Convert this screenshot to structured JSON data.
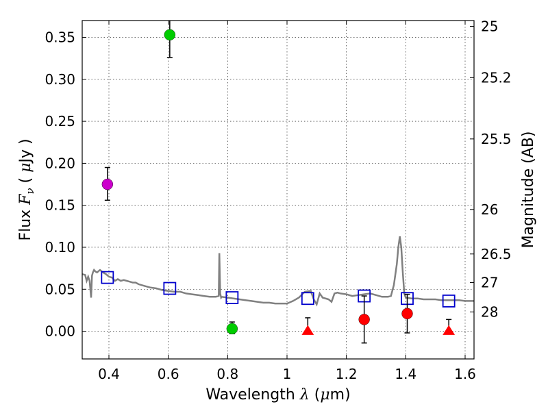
{
  "chart_data": {
    "type": "scatter",
    "xlabel": {
      "prefix": "Wavelength  ",
      "symbol": "λ",
      "unit_open": " (",
      "unit_mu": "μ",
      "unit_rest": "m)"
    },
    "ylabel": {
      "prefix": "Flux  ",
      "symbol": "F",
      "subscript": "ν",
      "unit_open": "  ( ",
      "unit_mu": "μ",
      "unit_rest": "Jy )"
    },
    "y2label": "Magnitude (AB)",
    "xlim": [
      0.31,
      1.63
    ],
    "ylim": [
      -0.033,
      0.37
    ],
    "grid": true,
    "xticks": [
      {
        "value": 0.4,
        "label": "0.4"
      },
      {
        "value": 0.6,
        "label": "0.6"
      },
      {
        "value": 0.8,
        "label": "0.8"
      },
      {
        "value": 1.0,
        "label": "1"
      },
      {
        "value": 1.2,
        "label": "1.2"
      },
      {
        "value": 1.4,
        "label": "1.4"
      },
      {
        "value": 1.6,
        "label": "1.6"
      }
    ],
    "yticks": [
      {
        "value": 0.0,
        "label": "0.00"
      },
      {
        "value": 0.05,
        "label": "0.05"
      },
      {
        "value": 0.1,
        "label": "0.10"
      },
      {
        "value": 0.15,
        "label": "0.15"
      },
      {
        "value": 0.2,
        "label": "0.20"
      },
      {
        "value": 0.25,
        "label": "0.25"
      },
      {
        "value": 0.3,
        "label": "0.30"
      },
      {
        "value": 0.35,
        "label": "0.35"
      }
    ],
    "y2ticks": [
      {
        "flux": 0.363,
        "label": "25"
      },
      {
        "flux": 0.302,
        "label": "25.2"
      },
      {
        "flux": 0.229,
        "label": "25.5"
      },
      {
        "flux": 0.145,
        "label": "26"
      },
      {
        "flux": 0.092,
        "label": "26.5"
      },
      {
        "flux": 0.058,
        "label": "27"
      },
      {
        "flux": 0.023,
        "label": "28"
      }
    ],
    "model_spectrum": {
      "name": "model SED",
      "color": "#808080",
      "x": [
        0.31,
        0.32,
        0.325,
        0.33,
        0.335,
        0.34,
        0.343,
        0.346,
        0.35,
        0.355,
        0.36,
        0.37,
        0.38,
        0.39,
        0.4,
        0.41,
        0.42,
        0.43,
        0.44,
        0.45,
        0.46,
        0.47,
        0.48,
        0.49,
        0.5,
        0.52,
        0.54,
        0.56,
        0.58,
        0.6,
        0.62,
        0.64,
        0.66,
        0.68,
        0.7,
        0.72,
        0.74,
        0.76,
        0.77,
        0.772,
        0.775,
        0.778,
        0.78,
        0.8,
        0.82,
        0.84,
        0.86,
        0.88,
        0.9,
        0.92,
        0.94,
        0.96,
        0.98,
        1.0,
        1.02,
        1.04,
        1.06,
        1.08,
        1.09,
        1.1,
        1.11,
        1.12,
        1.14,
        1.15,
        1.16,
        1.17,
        1.18,
        1.2,
        1.22,
        1.24,
        1.26,
        1.28,
        1.3,
        1.32,
        1.34,
        1.35,
        1.36,
        1.37,
        1.375,
        1.38,
        1.385,
        1.39,
        1.395,
        1.4,
        1.42,
        1.44,
        1.46,
        1.48,
        1.5,
        1.52,
        1.54,
        1.56,
        1.58,
        1.6,
        1.63
      ],
      "y": [
        0.068,
        0.067,
        0.06,
        0.065,
        0.06,
        0.04,
        0.066,
        0.07,
        0.073,
        0.071,
        0.07,
        0.073,
        0.07,
        0.068,
        0.065,
        0.064,
        0.06,
        0.062,
        0.06,
        0.061,
        0.06,
        0.059,
        0.058,
        0.058,
        0.056,
        0.054,
        0.052,
        0.051,
        0.049,
        0.048,
        0.047,
        0.047,
        0.045,
        0.044,
        0.043,
        0.042,
        0.041,
        0.041,
        0.042,
        0.093,
        0.045,
        0.04,
        0.041,
        0.04,
        0.039,
        0.038,
        0.037,
        0.036,
        0.035,
        0.034,
        0.034,
        0.033,
        0.033,
        0.033,
        0.036,
        0.04,
        0.047,
        0.048,
        0.038,
        0.032,
        0.045,
        0.04,
        0.038,
        0.035,
        0.045,
        0.046,
        0.045,
        0.044,
        0.042,
        0.043,
        0.044,
        0.045,
        0.043,
        0.041,
        0.041,
        0.042,
        0.055,
        0.08,
        0.1,
        0.113,
        0.1,
        0.07,
        0.045,
        0.04,
        0.039,
        0.039,
        0.038,
        0.038,
        0.038,
        0.037,
        0.037,
        0.037,
        0.037,
        0.036,
        0.036
      ]
    },
    "model_photometry": {
      "name": "model band fluxes",
      "color": "#0000cc",
      "x": [
        0.395,
        0.605,
        0.815,
        1.07,
        1.26,
        1.405,
        1.545
      ],
      "y": [
        0.064,
        0.051,
        0.04,
        0.039,
        0.042,
        0.039,
        0.036
      ]
    },
    "observed": [
      {
        "name": "obs-u",
        "x": 0.395,
        "y": 0.175,
        "err_low": 0.019,
        "err_high": 0.02,
        "color": "#cc00cc",
        "marker": "circle"
      },
      {
        "name": "obs-v",
        "x": 0.605,
        "y": 0.353,
        "err_low": 0.027,
        "err_high": 0.02,
        "color": "#00cc00",
        "marker": "circle"
      },
      {
        "name": "obs-i",
        "x": 0.815,
        "y": 0.003,
        "err_low": 0.006,
        "err_high": 0.008,
        "color": "#00cc00",
        "marker": "circle"
      },
      {
        "name": "obs-y",
        "x": 1.07,
        "y": 0.0,
        "err_low": 0.0,
        "err_high": 0.016,
        "color": "#ff0000",
        "marker": "triangle"
      },
      {
        "name": "obs-j",
        "x": 1.26,
        "y": 0.014,
        "err_low": 0.028,
        "err_high": 0.028,
        "color": "#ff0000",
        "marker": "circle"
      },
      {
        "name": "obs-jh",
        "x": 1.405,
        "y": 0.021,
        "err_low": 0.023,
        "err_high": 0.023,
        "color": "#ff0000",
        "marker": "circle"
      },
      {
        "name": "obs-h",
        "x": 1.545,
        "y": 0.0,
        "err_low": 0.0,
        "err_high": 0.014,
        "color": "#ff0000",
        "marker": "triangle"
      }
    ]
  }
}
